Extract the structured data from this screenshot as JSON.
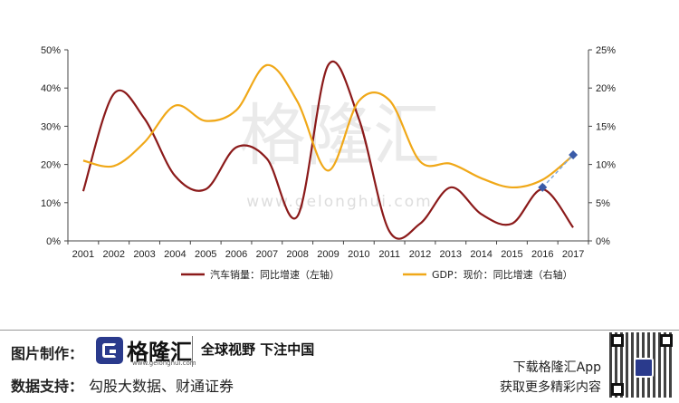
{
  "chart_data": {
    "type": "line",
    "x": [
      "2001",
      "2002",
      "2003",
      "2004",
      "2005",
      "2006",
      "2007",
      "2008",
      "2009",
      "2010",
      "2011",
      "2012",
      "2013",
      "2014",
      "2015",
      "2016",
      "2017"
    ],
    "y_left": {
      "ticks": [
        "0%",
        "10%",
        "20%",
        "30%",
        "40%",
        "50%"
      ],
      "range": [
        0,
        50
      ]
    },
    "y_right": {
      "ticks": [
        "0%",
        "5%",
        "10%",
        "15%",
        "20%",
        "25%"
      ],
      "range": [
        0,
        25
      ]
    },
    "grid": false,
    "legend_position": "bottom",
    "series": [
      {
        "name": "汽车销量：同比增速（左轴）",
        "axis": "left",
        "color": "#8b1a1a",
        "values": [
          13,
          38.5,
          32,
          17,
          13.5,
          24.5,
          21.5,
          6.5,
          46,
          32,
          2.5,
          4.5,
          14,
          7,
          4.5,
          13.5,
          3.5
        ]
      },
      {
        "name": "GDP：现价：同比增速（右轴）",
        "axis": "right",
        "color": "#f0a818",
        "values": [
          10.5,
          9.8,
          12.9,
          17.7,
          15.7,
          17.1,
          23,
          18.2,
          9.2,
          18.3,
          18.4,
          10.4,
          10.1,
          8.2,
          7,
          8,
          11.2
        ]
      }
    ],
    "markers": [
      {
        "x": "2016",
        "axis": "left",
        "value": 14
      },
      {
        "x": "2017",
        "axis": "left",
        "value": 22.5
      }
    ],
    "marker_color": "#3a5ba8",
    "dashed_link_color": "#7fa7d9"
  },
  "watermark": {
    "name": "格隆汇",
    "url": "www.gelonghui.com"
  },
  "footer": {
    "made_by_label": "图片制作：",
    "data_label": "数据支持：",
    "data_sources": "勾股大数据、财通证券",
    "logo_name": "格隆汇",
    "logo_url": "www.gelonghui.com",
    "slogan": "全球视野  下注中国",
    "app_line1": "下载格隆汇App",
    "app_line2": "获取更多精彩内容"
  }
}
